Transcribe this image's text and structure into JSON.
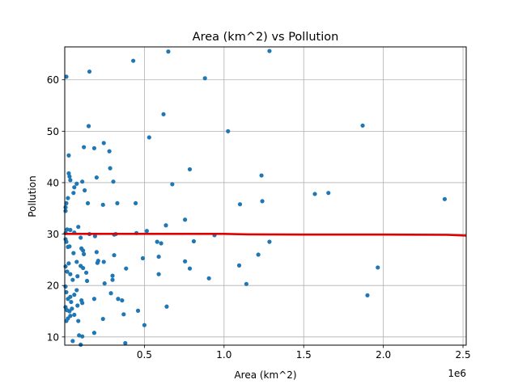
{
  "chart_data": {
    "type": "scatter",
    "title": "Area (km^2) vs Pollution",
    "xlabel": "Area (km^2)",
    "ylabel": "Pollution",
    "x_offset_label": "1e6",
    "xlim": [
      0,
      2520000
    ],
    "ylim": [
      8.4,
      66.4
    ],
    "xticks": [
      0.5,
      1.0,
      1.5,
      2.0,
      2.5
    ],
    "xtick_labels": [
      "0.5",
      "1.0",
      "1.5",
      "2.0",
      "2.5"
    ],
    "yticks": [
      10,
      20,
      30,
      40,
      50,
      60
    ],
    "ytick_labels": [
      "10",
      "20",
      "30",
      "40",
      "50",
      "60"
    ],
    "grid": true,
    "point_color": "#1f77b4",
    "line_color": "#e00000",
    "points": [
      [
        0.01,
        60.6
      ],
      [
        0.155,
        61.6
      ],
      [
        0.43,
        63.7
      ],
      [
        0.65,
        65.5
      ],
      [
        1.285,
        65.6
      ],
      [
        0.88,
        60.3
      ],
      [
        0.15,
        51.0
      ],
      [
        0.62,
        53.3
      ],
      [
        1.025,
        50.0
      ],
      [
        1.87,
        51.1
      ],
      [
        0.53,
        48.8
      ],
      [
        0.025,
        45.3
      ],
      [
        0.12,
        46.9
      ],
      [
        0.185,
        46.7
      ],
      [
        0.245,
        47.7
      ],
      [
        0.28,
        46.1
      ],
      [
        0.01,
        36.0
      ],
      [
        0.02,
        37.0
      ],
      [
        0.035,
        40.5
      ],
      [
        0.025,
        41.8
      ],
      [
        0.03,
        41.2
      ],
      [
        0.06,
        39.1
      ],
      [
        0.075,
        39.8
      ],
      [
        0.055,
        38.0
      ],
      [
        0.11,
        40.2
      ],
      [
        0.125,
        38.5
      ],
      [
        0.145,
        36.0
      ],
      [
        0.2,
        41.0
      ],
      [
        0.285,
        42.8
      ],
      [
        0.305,
        40.2
      ],
      [
        0.24,
        35.7
      ],
      [
        0.33,
        36.0
      ],
      [
        0.445,
        36.0
      ],
      [
        0.675,
        39.7
      ],
      [
        0.785,
        42.6
      ],
      [
        1.1,
        35.8
      ],
      [
        1.235,
        41.4
      ],
      [
        1.24,
        36.4
      ],
      [
        1.57,
        37.8
      ],
      [
        1.655,
        38.0
      ],
      [
        2.385,
        36.8
      ],
      [
        0.005,
        35.2
      ],
      [
        0.005,
        34.5
      ],
      [
        0.085,
        31.4
      ],
      [
        0.06,
        30.3
      ],
      [
        0.035,
        30.8
      ],
      [
        0.015,
        30.9
      ],
      [
        0.005,
        30.2
      ],
      [
        0.1,
        29.3
      ],
      [
        0.155,
        30.0
      ],
      [
        0.19,
        29.6
      ],
      [
        0.31,
        29.9
      ],
      [
        0.32,
        30.0
      ],
      [
        0.45,
        30.2
      ],
      [
        0.515,
        30.6
      ],
      [
        0.635,
        31.7
      ],
      [
        0.755,
        32.8
      ],
      [
        0.94,
        29.8
      ],
      [
        0.005,
        29.0
      ],
      [
        0.01,
        28.5
      ],
      [
        0.02,
        27.5
      ],
      [
        0.03,
        27.6
      ],
      [
        0.055,
        26.3
      ],
      [
        0.105,
        27.2
      ],
      [
        0.115,
        26.8
      ],
      [
        0.12,
        26.1
      ],
      [
        0.075,
        24.6
      ],
      [
        0.025,
        24.3
      ],
      [
        0.2,
        26.5
      ],
      [
        0.21,
        24.8
      ],
      [
        0.205,
        24.4
      ],
      [
        0.245,
        24.6
      ],
      [
        0.31,
        25.9
      ],
      [
        0.49,
        25.3
      ],
      [
        0.58,
        28.5
      ],
      [
        0.605,
        28.2
      ],
      [
        0.59,
        25.6
      ],
      [
        0.755,
        24.7
      ],
      [
        0.81,
        28.6
      ],
      [
        0.785,
        23.3
      ],
      [
        1.095,
        23.9
      ],
      [
        1.215,
        26.0
      ],
      [
        1.285,
        28.5
      ],
      [
        1.965,
        23.5
      ],
      [
        0.005,
        23.7
      ],
      [
        0.015,
        22.7
      ],
      [
        0.035,
        22.2
      ],
      [
        0.05,
        21.1
      ],
      [
        0.1,
        23.8
      ],
      [
        0.115,
        23.4
      ],
      [
        0.135,
        22.5
      ],
      [
        0.14,
        20.9
      ],
      [
        0.08,
        21.8
      ],
      [
        0.25,
        20.4
      ],
      [
        0.3,
        21.1
      ],
      [
        0.3,
        21.9
      ],
      [
        0.385,
        23.3
      ],
      [
        0.59,
        22.2
      ],
      [
        0.905,
        21.4
      ],
      [
        1.14,
        20.3
      ],
      [
        0.005,
        19.8
      ],
      [
        0.01,
        18.7
      ],
      [
        0.02,
        17.4
      ],
      [
        0.035,
        17.8
      ],
      [
        0.06,
        18.2
      ],
      [
        0.075,
        19.1
      ],
      [
        0.04,
        16.8
      ],
      [
        0.08,
        16.1
      ],
      [
        0.105,
        17.1
      ],
      [
        0.11,
        16.6
      ],
      [
        0.185,
        17.4
      ],
      [
        0.29,
        18.5
      ],
      [
        0.335,
        17.4
      ],
      [
        0.36,
        17.1
      ],
      [
        1.9,
        18.1
      ],
      [
        0.005,
        15.8
      ],
      [
        0.015,
        15.2
      ],
      [
        0.03,
        15.0
      ],
      [
        0.045,
        15.5
      ],
      [
        0.06,
        14.3
      ],
      [
        0.035,
        14.1
      ],
      [
        0.02,
        13.6
      ],
      [
        0.01,
        13.1
      ],
      [
        0.085,
        13.1
      ],
      [
        0.24,
        13.5
      ],
      [
        0.37,
        14.4
      ],
      [
        0.46,
        15.1
      ],
      [
        0.64,
        15.9
      ],
      [
        0.5,
        12.3
      ],
      [
        0.09,
        10.3
      ],
      [
        0.11,
        10.1
      ],
      [
        0.185,
        10.8
      ],
      [
        0.05,
        9.2
      ],
      [
        0.38,
        8.8
      ],
      [
        0.1,
        8.5
      ]
    ],
    "trend_line": [
      [
        0.0,
        30.05
      ],
      [
        0.5,
        30.05
      ],
      [
        1.0,
        30.05
      ],
      [
        1.15,
        29.95
      ],
      [
        1.5,
        29.9
      ],
      [
        2.0,
        29.9
      ],
      [
        2.4,
        29.85
      ],
      [
        2.52,
        29.7
      ]
    ]
  }
}
